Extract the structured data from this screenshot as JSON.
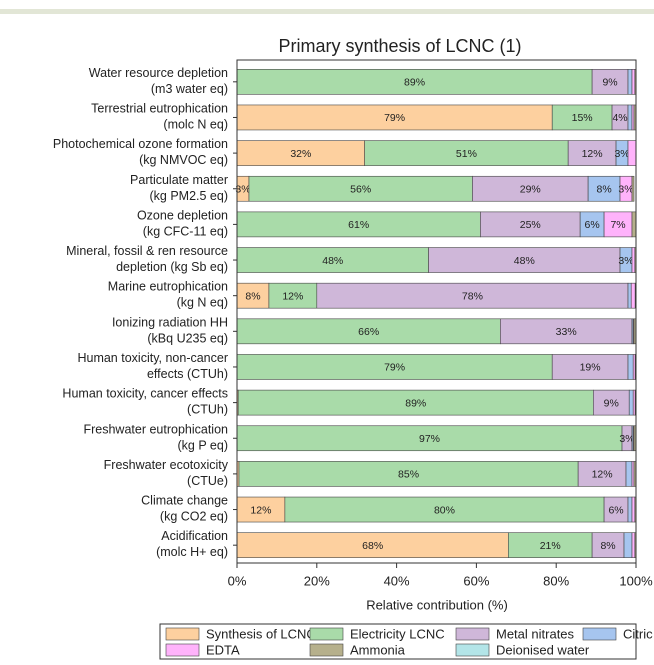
{
  "chart_data": {
    "type": "stacked-bar-horizontal",
    "title": "Primary synthesis of LCNC (1)",
    "x_label": "Relative contribution (%)",
    "categories": [
      [
        "Water resource depletion",
        "(m3 water eq)"
      ],
      [
        "Terrestrial eutrophication",
        "(molc N eq)"
      ],
      [
        "Photochemical ozone formation",
        "(kg NMVOC eq)"
      ],
      [
        "Particulate matter",
        "(kg PM2.5 eq)"
      ],
      [
        "Ozone depletion",
        "(kg CFC-11 eq)"
      ],
      [
        "Mineral, fossil & ren resource",
        "depletion (kg Sb eq)"
      ],
      [
        "Marine eutrophication",
        "(kg N eq)"
      ],
      [
        "Ionizing radiation HH",
        "(kBq U235 eq)"
      ],
      [
        "Human toxicity, non-cancer",
        "effects (CTUh)"
      ],
      [
        "Human toxicity, cancer effects",
        "(CTUh)"
      ],
      [
        "Freshwater eutrophication",
        "(kg P eq)"
      ],
      [
        "Freshwater ecotoxicity",
        "(CTUe)"
      ],
      [
        "Climate change",
        "(kg CO2 eq)"
      ],
      [
        "Acidification",
        "(molc H+ eq)"
      ]
    ],
    "series": [
      {
        "name": "Synthesis of LCNC",
        "color": "#fdd09f",
        "values": [
          0,
          79,
          32,
          3,
          0,
          0,
          8,
          0,
          0,
          0.3,
          0,
          0.5,
          12,
          68
        ],
        "value_labels": [
          null,
          "79%",
          "32%",
          "3%",
          null,
          null,
          "8%",
          null,
          null,
          null,
          null,
          null,
          "12%",
          "68%"
        ]
      },
      {
        "name": "Electricity LCNC",
        "color": "#a9dba9",
        "values": [
          89,
          15,
          51,
          56,
          61,
          48,
          12,
          66,
          79,
          89,
          96.5,
          85,
          80,
          21
        ],
        "value_labels": [
          "89%",
          "15%",
          "51%",
          "56%",
          "61%",
          "48%",
          "12%",
          "66%",
          "79%",
          "89%",
          "97%",
          "85%",
          "80%",
          "21%"
        ]
      },
      {
        "name": "Metal nitrates",
        "color": "#cfb7d9",
        "values": [
          9,
          4,
          12,
          29,
          25,
          48,
          78,
          33,
          19,
          9,
          2.5,
          12,
          6,
          8
        ],
        "value_labels": [
          "9%",
          "4%",
          "12%",
          "29%",
          "25%",
          "48%",
          "78%",
          "33%",
          "19%",
          "9%",
          "3%",
          "12%",
          "6%",
          "8%"
        ]
      },
      {
        "name": "Citric acid",
        "color": "#a6c5ef",
        "values": [
          1,
          1,
          3,
          8,
          6,
          3,
          0.8,
          0.3,
          1.3,
          1,
          0.3,
          1.5,
          1,
          2
        ],
        "value_labels": [
          null,
          null,
          "3%",
          "8%",
          "6%",
          "3%",
          null,
          null,
          null,
          null,
          null,
          null,
          null,
          null
        ]
      },
      {
        "name": "EDTA",
        "color": "#ffb3fb",
        "values": [
          0.7,
          0.5,
          2,
          3,
          7,
          0.7,
          1,
          0.2,
          0.5,
          0.5,
          0.2,
          0.5,
          0.7,
          0.7
        ],
        "value_labels": [
          null,
          null,
          null,
          "3%",
          "7%",
          null,
          null,
          null,
          null,
          null,
          null,
          null,
          null,
          null
        ]
      },
      {
        "name": "Ammonia",
        "color": "#b6b08c",
        "values": [
          0.3,
          0.5,
          0,
          0.5,
          1,
          0.3,
          0.2,
          0.5,
          0.2,
          0.2,
          0.5,
          0.5,
          0.3,
          0.3
        ],
        "value_labels": [
          null,
          null,
          null,
          null,
          null,
          null,
          null,
          null,
          null,
          null,
          null,
          null,
          null,
          null
        ]
      },
      {
        "name": "Deionised water",
        "color": "#b3e5e8",
        "values": [
          0,
          0,
          0,
          0,
          0,
          0,
          0,
          0,
          0,
          0,
          0,
          0,
          0,
          0
        ],
        "value_labels": [
          null,
          null,
          null,
          null,
          null,
          null,
          null,
          null,
          null,
          null,
          null,
          null,
          null,
          null
        ]
      }
    ],
    "xlim": [
      0,
      100
    ],
    "xticks": [
      {
        "value": 0,
        "label": "0%"
      },
      {
        "value": 20,
        "label": "20%"
      },
      {
        "value": 40,
        "label": "40%"
      },
      {
        "value": 60,
        "label": "60%"
      },
      {
        "value": 80,
        "label": "80%"
      },
      {
        "value": 100,
        "label": "100%"
      }
    ]
  }
}
